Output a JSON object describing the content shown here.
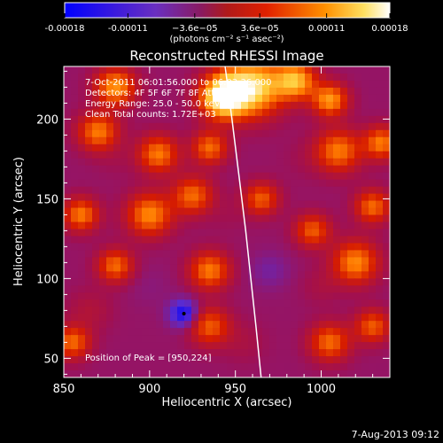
{
  "colorbar": {
    "tick_labels": [
      "-0.00018",
      "-0.00011",
      "−3.6e−05",
      "3.6e−05",
      "0.00011",
      "0.00018"
    ],
    "tick_values": [
      -0.00018,
      -0.00011,
      -3.6e-05,
      3.6e-05,
      0.00011,
      0.00018
    ],
    "range": [
      -0.00018,
      0.00018
    ],
    "unit_label": "(photons cm⁻² s⁻¹ asec⁻²)",
    "colors": [
      "#0000ff",
      "#5a2bd0",
      "#a11050",
      "#d61c00",
      "#ff7a00",
      "#ffd040",
      "#ffffff"
    ]
  },
  "chart_data": {
    "type": "heatmap",
    "title": "Reconstructed RHESSI Image",
    "xlabel": "Heliocentric X (arcsec)",
    "ylabel": "Heliocentric Y (arcsec)",
    "xlim": [
      850,
      1040
    ],
    "ylim": [
      38,
      233
    ],
    "xticks": [
      850,
      900,
      950,
      1000
    ],
    "yticks": [
      50,
      100,
      150,
      200
    ],
    "info_lines": [
      "7-Oct-2011 06:01:56.000 to 06:03:36.000",
      "Detectors: 4F 5F 6F 7F 8F  Att 0",
      "Energy Range: 25.0 - 50.0 keV",
      "Clean    Total counts: 1.72E+03"
    ],
    "peak_label": "Position of Peak = [950,224]",
    "peak_position": [
      950,
      224
    ],
    "limb_curve": [
      [
        944,
        233
      ],
      [
        948,
        200
      ],
      [
        952,
        165
      ],
      [
        956,
        130
      ],
      [
        959,
        100
      ],
      [
        962,
        70
      ],
      [
        965,
        38
      ]
    ],
    "blobs": [
      {
        "x": 943,
        "y": 214,
        "v": 0.00018,
        "s": 9
      },
      {
        "x": 960,
        "y": 220,
        "v": 0.00014,
        "s": 12
      },
      {
        "x": 985,
        "y": 224,
        "v": 0.0001,
        "s": 8
      },
      {
        "x": 1005,
        "y": 212,
        "v": 8e-05,
        "s": 7
      },
      {
        "x": 880,
        "y": 220,
        "v": 8e-05,
        "s": 8
      },
      {
        "x": 870,
        "y": 192,
        "v": 6e-05,
        "s": 8
      },
      {
        "x": 905,
        "y": 178,
        "v": 6e-05,
        "s": 8
      },
      {
        "x": 935,
        "y": 182,
        "v": 5e-05,
        "s": 7
      },
      {
        "x": 1010,
        "y": 180,
        "v": 6e-05,
        "s": 9
      },
      {
        "x": 1035,
        "y": 185,
        "v": 6e-05,
        "s": 7
      },
      {
        "x": 965,
        "y": 150,
        "v": 4e-05,
        "s": 7
      },
      {
        "x": 900,
        "y": 140,
        "v": 7e-05,
        "s": 9
      },
      {
        "x": 925,
        "y": 152,
        "v": 5e-05,
        "s": 8
      },
      {
        "x": 860,
        "y": 140,
        "v": 6e-05,
        "s": 7
      },
      {
        "x": 1030,
        "y": 145,
        "v": 5e-05,
        "s": 7
      },
      {
        "x": 995,
        "y": 130,
        "v": 4e-05,
        "s": 7
      },
      {
        "x": 1020,
        "y": 110,
        "v": 7e-05,
        "s": 9
      },
      {
        "x": 935,
        "y": 105,
        "v": 6e-05,
        "s": 8
      },
      {
        "x": 880,
        "y": 108,
        "v": 5e-05,
        "s": 7
      },
      {
        "x": 855,
        "y": 60,
        "v": 5e-05,
        "s": 7
      },
      {
        "x": 935,
        "y": 70,
        "v": 4e-05,
        "s": 8
      },
      {
        "x": 1005,
        "y": 60,
        "v": 5e-05,
        "s": 8
      },
      {
        "x": 1030,
        "y": 70,
        "v": 4e-05,
        "s": 7
      },
      {
        "x": 920,
        "y": 78,
        "v": -0.00018,
        "s": 6
      },
      {
        "x": 900,
        "y": 95,
        "v": -8e-05,
        "s": 9
      },
      {
        "x": 880,
        "y": 175,
        "v": -6e-05,
        "s": 8
      },
      {
        "x": 945,
        "y": 140,
        "v": -6e-05,
        "s": 8
      },
      {
        "x": 970,
        "y": 105,
        "v": -0.0001,
        "s": 8
      },
      {
        "x": 990,
        "y": 175,
        "v": -6e-05,
        "s": 9
      },
      {
        "x": 955,
        "y": 60,
        "v": -5e-05,
        "s": 9
      },
      {
        "x": 865,
        "y": 80,
        "v": -4e-05,
        "s": 9
      },
      {
        "x": 1000,
        "y": 95,
        "v": -5e-05,
        "s": 8
      }
    ]
  },
  "footer": {
    "timestamp": "7-Aug-2013 09:12"
  }
}
